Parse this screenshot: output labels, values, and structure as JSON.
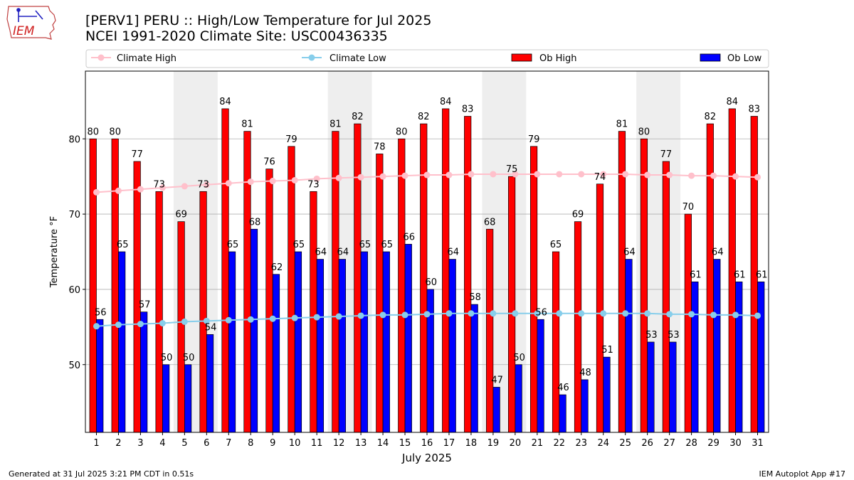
{
  "header": {
    "title_line1": "[PERV1] PERU :: High/Low Temperature for Jul 2025",
    "title_line2": "NCEI 1991-2020 Climate Site: USC00436335"
  },
  "logo": {
    "text": "IEM"
  },
  "footer": {
    "left": "Generated at 31 Jul 2025 3:21 PM CDT in 0.51s",
    "right": "IEM Autoplot App #17"
  },
  "chart_data": {
    "type": "bar",
    "title": "[PERV1] PERU :: High/Low Temperature for Jul 2025",
    "subtitle": "NCEI 1991-2020 Climate Site: USC00436335",
    "xlabel": "July 2025",
    "ylabel": "Temperature °F",
    "ylim": [
      41,
      89
    ],
    "yticks": [
      50,
      60,
      70,
      80
    ],
    "grid": "y",
    "categories": [
      "1",
      "2",
      "3",
      "4",
      "5",
      "6",
      "7",
      "8",
      "9",
      "10",
      "11",
      "12",
      "13",
      "14",
      "15",
      "16",
      "17",
      "18",
      "19",
      "20",
      "21",
      "22",
      "23",
      "24",
      "25",
      "26",
      "27",
      "28",
      "29",
      "30",
      "31"
    ],
    "weekend_days": [
      5,
      6,
      12,
      13,
      19,
      20,
      26,
      27
    ],
    "legend": {
      "placement": "top",
      "entries": [
        "Climate High",
        "Climate Low",
        "Ob High",
        "Ob Low"
      ]
    },
    "series": [
      {
        "name": "Ob High",
        "kind": "bar",
        "color": "#ff0000",
        "values": [
          80,
          80,
          77,
          73,
          69,
          73,
          84,
          81,
          76,
          79,
          73,
          81,
          82,
          78,
          80,
          82,
          84,
          83,
          68,
          75,
          79,
          65,
          69,
          74,
          81,
          80,
          77,
          70,
          82,
          84,
          83
        ]
      },
      {
        "name": "Ob Low",
        "kind": "bar",
        "color": "#0000ff",
        "values": [
          56,
          65,
          57,
          50,
          50,
          54,
          65,
          68,
          62,
          65,
          64,
          64,
          65,
          65,
          66,
          60,
          64,
          58,
          47,
          50,
          56,
          46,
          48,
          51,
          64,
          53,
          53,
          61,
          64,
          61,
          61
        ]
      },
      {
        "name": "Climate High",
        "kind": "line",
        "color": "#ffc0cb",
        "values": [
          72.9,
          73.1,
          73.3,
          73.5,
          73.7,
          73.9,
          74.1,
          74.3,
          74.4,
          74.5,
          74.7,
          74.8,
          74.9,
          75.0,
          75.1,
          75.2,
          75.2,
          75.3,
          75.3,
          75.3,
          75.3,
          75.3,
          75.3,
          75.3,
          75.3,
          75.2,
          75.2,
          75.1,
          75.1,
          75.0,
          74.9
        ]
      },
      {
        "name": "Climate Low",
        "kind": "line",
        "color": "#87ceeb",
        "values": [
          55.1,
          55.3,
          55.4,
          55.5,
          55.7,
          55.8,
          55.9,
          56.0,
          56.1,
          56.2,
          56.3,
          56.4,
          56.5,
          56.6,
          56.6,
          56.7,
          56.8,
          56.8,
          56.8,
          56.8,
          56.8,
          56.8,
          56.8,
          56.8,
          56.8,
          56.8,
          56.7,
          56.7,
          56.6,
          56.6,
          56.5
        ]
      }
    ]
  }
}
